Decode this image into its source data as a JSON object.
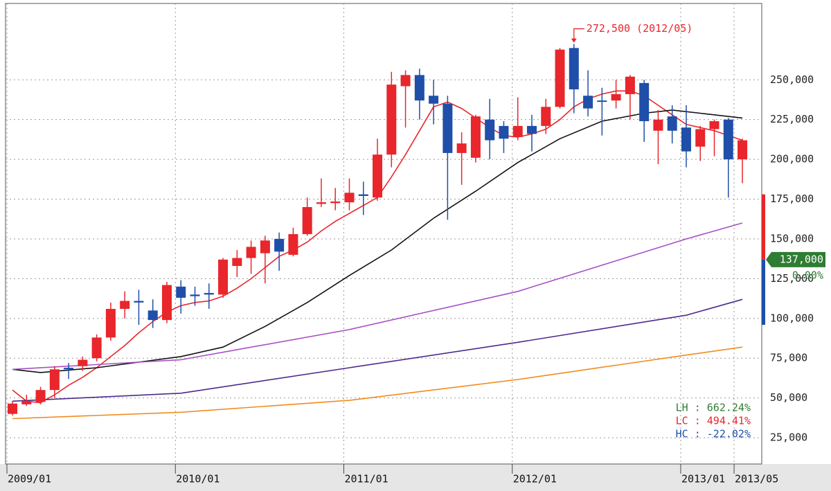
{
  "chart_data": {
    "type": "candlestick",
    "categories": [
      "2009/01",
      null,
      null,
      null,
      null,
      null,
      null,
      null,
      null,
      null,
      null,
      null,
      "2010/01",
      null,
      null,
      null,
      null,
      null,
      null,
      null,
      null,
      null,
      null,
      null,
      "2011/01",
      null,
      null,
      null,
      null,
      null,
      null,
      null,
      null,
      null,
      null,
      null,
      "2012/01",
      null,
      null,
      null,
      null,
      null,
      null,
      null,
      null,
      null,
      null,
      null,
      "2013/01",
      null,
      null,
      null,
      "2013/05"
    ],
    "open": [
      40000,
      46000,
      47500,
      55000,
      69000,
      70000,
      75000,
      88000,
      106000,
      111000,
      105000,
      99000,
      120000,
      115000,
      116000,
      115000,
      133000,
      138000,
      141000,
      150000,
      140000,
      153000,
      172000,
      172500,
      173000,
      178000,
      176000,
      203000,
      246000,
      253000,
      240000,
      235000,
      204000,
      201000,
      225000,
      221000,
      214000,
      221000,
      221000,
      233000,
      270000,
      240000,
      237000,
      237000,
      241000,
      248000,
      218000,
      227000,
      220000,
      208000,
      219000,
      225000,
      200000
    ],
    "high": [
      48000,
      52000,
      57000,
      70000,
      72000,
      76000,
      90000,
      110000,
      117000,
      118000,
      112000,
      123000,
      124000,
      120000,
      122000,
      138000,
      143000,
      149000,
      152000,
      154000,
      157000,
      176000,
      188000,
      182000,
      188000,
      186000,
      213000,
      255000,
      256000,
      257000,
      250000,
      240000,
      217000,
      228000,
      238000,
      224000,
      239000,
      228000,
      238000,
      270000,
      272500,
      256000,
      245000,
      250000,
      253000,
      250000,
      231000,
      234000,
      234000,
      221000,
      225000,
      226000,
      213000
    ],
    "low": [
      39000,
      45000,
      46000,
      50000,
      62000,
      67000,
      73000,
      86000,
      100000,
      96000,
      94000,
      97000,
      103000,
      108000,
      106000,
      113000,
      126000,
      128000,
      122000,
      130000,
      139000,
      152000,
      170000,
      168000,
      168000,
      165000,
      174000,
      195000,
      220000,
      225000,
      222000,
      162000,
      184000,
      198000,
      200000,
      204000,
      212000,
      205000,
      216000,
      232000,
      229000,
      227000,
      215000,
      232000,
      225000,
      211000,
      197000,
      210000,
      195000,
      199000,
      202000,
      176000,
      185000
    ],
    "close": [
      46500,
      48000,
      55000,
      68000,
      68000,
      74000,
      88000,
      106000,
      111000,
      110000,
      99000,
      121000,
      113000,
      114000,
      115000,
      137000,
      138000,
      145000,
      149000,
      142000,
      153000,
      170000,
      173000,
      173500,
      179000,
      177000,
      203000,
      247000,
      253000,
      237000,
      235000,
      204000,
      210000,
      227000,
      212000,
      213000,
      221000,
      216000,
      233000,
      269000,
      244000,
      232000,
      236500,
      241000,
      252000,
      224000,
      225000,
      218000,
      205000,
      219000,
      224000,
      200000,
      212000
    ],
    "up_color": "#e8262b",
    "down_color": "#1f4fa8",
    "series": [
      {
        "color": "#e8262b",
        "x": [
          0,
          1,
          2,
          3,
          4,
          5,
          6,
          7,
          8,
          9,
          10,
          11,
          12,
          13,
          14,
          15,
          16,
          17,
          18,
          19,
          20,
          21,
          22,
          23,
          24,
          25,
          26,
          27,
          28,
          29,
          30,
          31,
          32,
          33,
          34,
          35,
          36,
          37,
          38,
          39,
          40,
          41,
          42,
          43,
          44,
          45,
          46,
          47,
          48,
          49,
          50,
          51,
          52
        ],
        "values": [
          55000,
          48000,
          47000,
          52000,
          58000,
          63000,
          69000,
          76000,
          83000,
          91000,
          98000,
          104000,
          108000,
          110000,
          111000,
          114000,
          119000,
          125000,
          132000,
          139000,
          143000,
          148000,
          155000,
          161000,
          166000,
          171000,
          176000,
          189000,
          203000,
          218000,
          233000,
          236000,
          232000,
          226000,
          220000,
          215000,
          214000,
          216000,
          219000,
          225000,
          233000,
          238000,
          241000,
          243000,
          243000,
          240000,
          234000,
          228000,
          222000,
          220000,
          218000,
          215000,
          212000
        ]
      },
      {
        "color": "#111111",
        "x": [
          0,
          2,
          6,
          12,
          15,
          18,
          21,
          24,
          27,
          30,
          33,
          36,
          39,
          42,
          45,
          47,
          49,
          52
        ],
        "values": [
          68000,
          66000,
          69000,
          76000,
          82000,
          95000,
          110000,
          127000,
          143000,
          163000,
          180000,
          198000,
          213000,
          224000,
          229000,
          231000,
          229000,
          226000
        ]
      },
      {
        "color": "#a64fc4",
        "x": [
          0,
          12,
          24,
          36,
          48,
          52
        ],
        "values": [
          68000,
          74000,
          93000,
          117000,
          150000,
          160000
        ]
      },
      {
        "color": "#4b2a8c",
        "x": [
          0,
          12,
          24,
          36,
          48,
          52
        ],
        "values": [
          48000,
          53000,
          69000,
          85000,
          102000,
          112000
        ]
      },
      {
        "color": "#f08a1c",
        "x": [
          0,
          12,
          24,
          36,
          48,
          52
        ],
        "values": [
          37000,
          41000,
          48500,
          61600,
          77000,
          82000
        ]
      }
    ],
    "ylim": [
      8500,
      298000
    ],
    "yticks": [
      {
        "value": 25000,
        "label": "25,000"
      },
      {
        "value": 50000,
        "label": "50,000"
      },
      {
        "value": 75000,
        "label": "75,000"
      },
      {
        "value": 100000,
        "label": "100,000"
      },
      {
        "value": 125000,
        "label": "125,000"
      },
      {
        "value": 150000,
        "label": "150,000"
      },
      {
        "value": 175000,
        "label": "175,000"
      },
      {
        "value": 200000,
        "label": "200,000"
      },
      {
        "value": 225000,
        "label": "225,000"
      },
      {
        "value": 250000,
        "label": "250,000"
      }
    ],
    "grid": true,
    "annotation": {
      "text": "272,500 (2012/05)",
      "index": 40
    },
    "price_gauge": {
      "high": 178000,
      "low": 96000,
      "current": 137000,
      "current_label": "137,000",
      "change": 0,
      "change_label": "0.00%"
    },
    "stats": [
      {
        "text": "LH : 662.24%",
        "color": "#2e7d32"
      },
      {
        "text": "LC : 494.41%",
        "color": "#e8262b"
      },
      {
        "text": "HC : -22.02%",
        "color": "#1f4fa8"
      }
    ]
  }
}
